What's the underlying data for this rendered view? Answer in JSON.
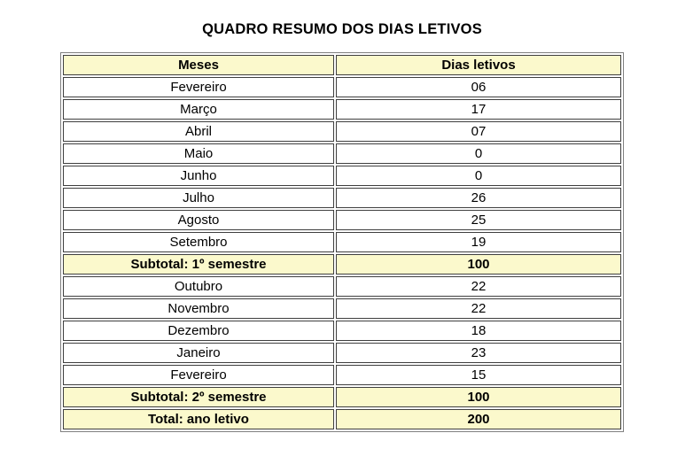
{
  "title": "QUADRO RESUMO DOS DIAS LETIVOS",
  "table": {
    "headers": [
      "Meses",
      "Dias letivos"
    ],
    "rows": [
      {
        "label": "Fevereiro",
        "value": "06",
        "type": "data"
      },
      {
        "label": "Março",
        "value": "17",
        "type": "data"
      },
      {
        "label": "Abril",
        "value": "07",
        "type": "data"
      },
      {
        "label": "Maio",
        "value": "0",
        "type": "data"
      },
      {
        "label": "Junho",
        "value": "0",
        "type": "data"
      },
      {
        "label": "Julho",
        "value": "26",
        "type": "data"
      },
      {
        "label": "Agosto",
        "value": "25",
        "type": "data"
      },
      {
        "label": "Setembro",
        "value": "19",
        "type": "data"
      },
      {
        "label": "Subtotal: 1º semestre",
        "value": "100",
        "type": "subtotal"
      },
      {
        "label": "Outubro",
        "value": "22",
        "type": "data"
      },
      {
        "label": "Novembro",
        "value": "22",
        "type": "data"
      },
      {
        "label": "Dezembro",
        "value": "18",
        "type": "data"
      },
      {
        "label": "Janeiro",
        "value": "23",
        "type": "data"
      },
      {
        "label": "Fevereiro",
        "value": "15",
        "type": "data"
      },
      {
        "label": "Subtotal: 2º semestre",
        "value": "100",
        "type": "subtotal"
      },
      {
        "label": "Total: ano letivo",
        "value": "200",
        "type": "total"
      }
    ],
    "colors": {
      "highlight_bg": "#FBF9CC",
      "cell_border": "#3f3f3f",
      "outer_border": "#808080",
      "text": "#000000",
      "page_bg": "#ffffff"
    }
  }
}
